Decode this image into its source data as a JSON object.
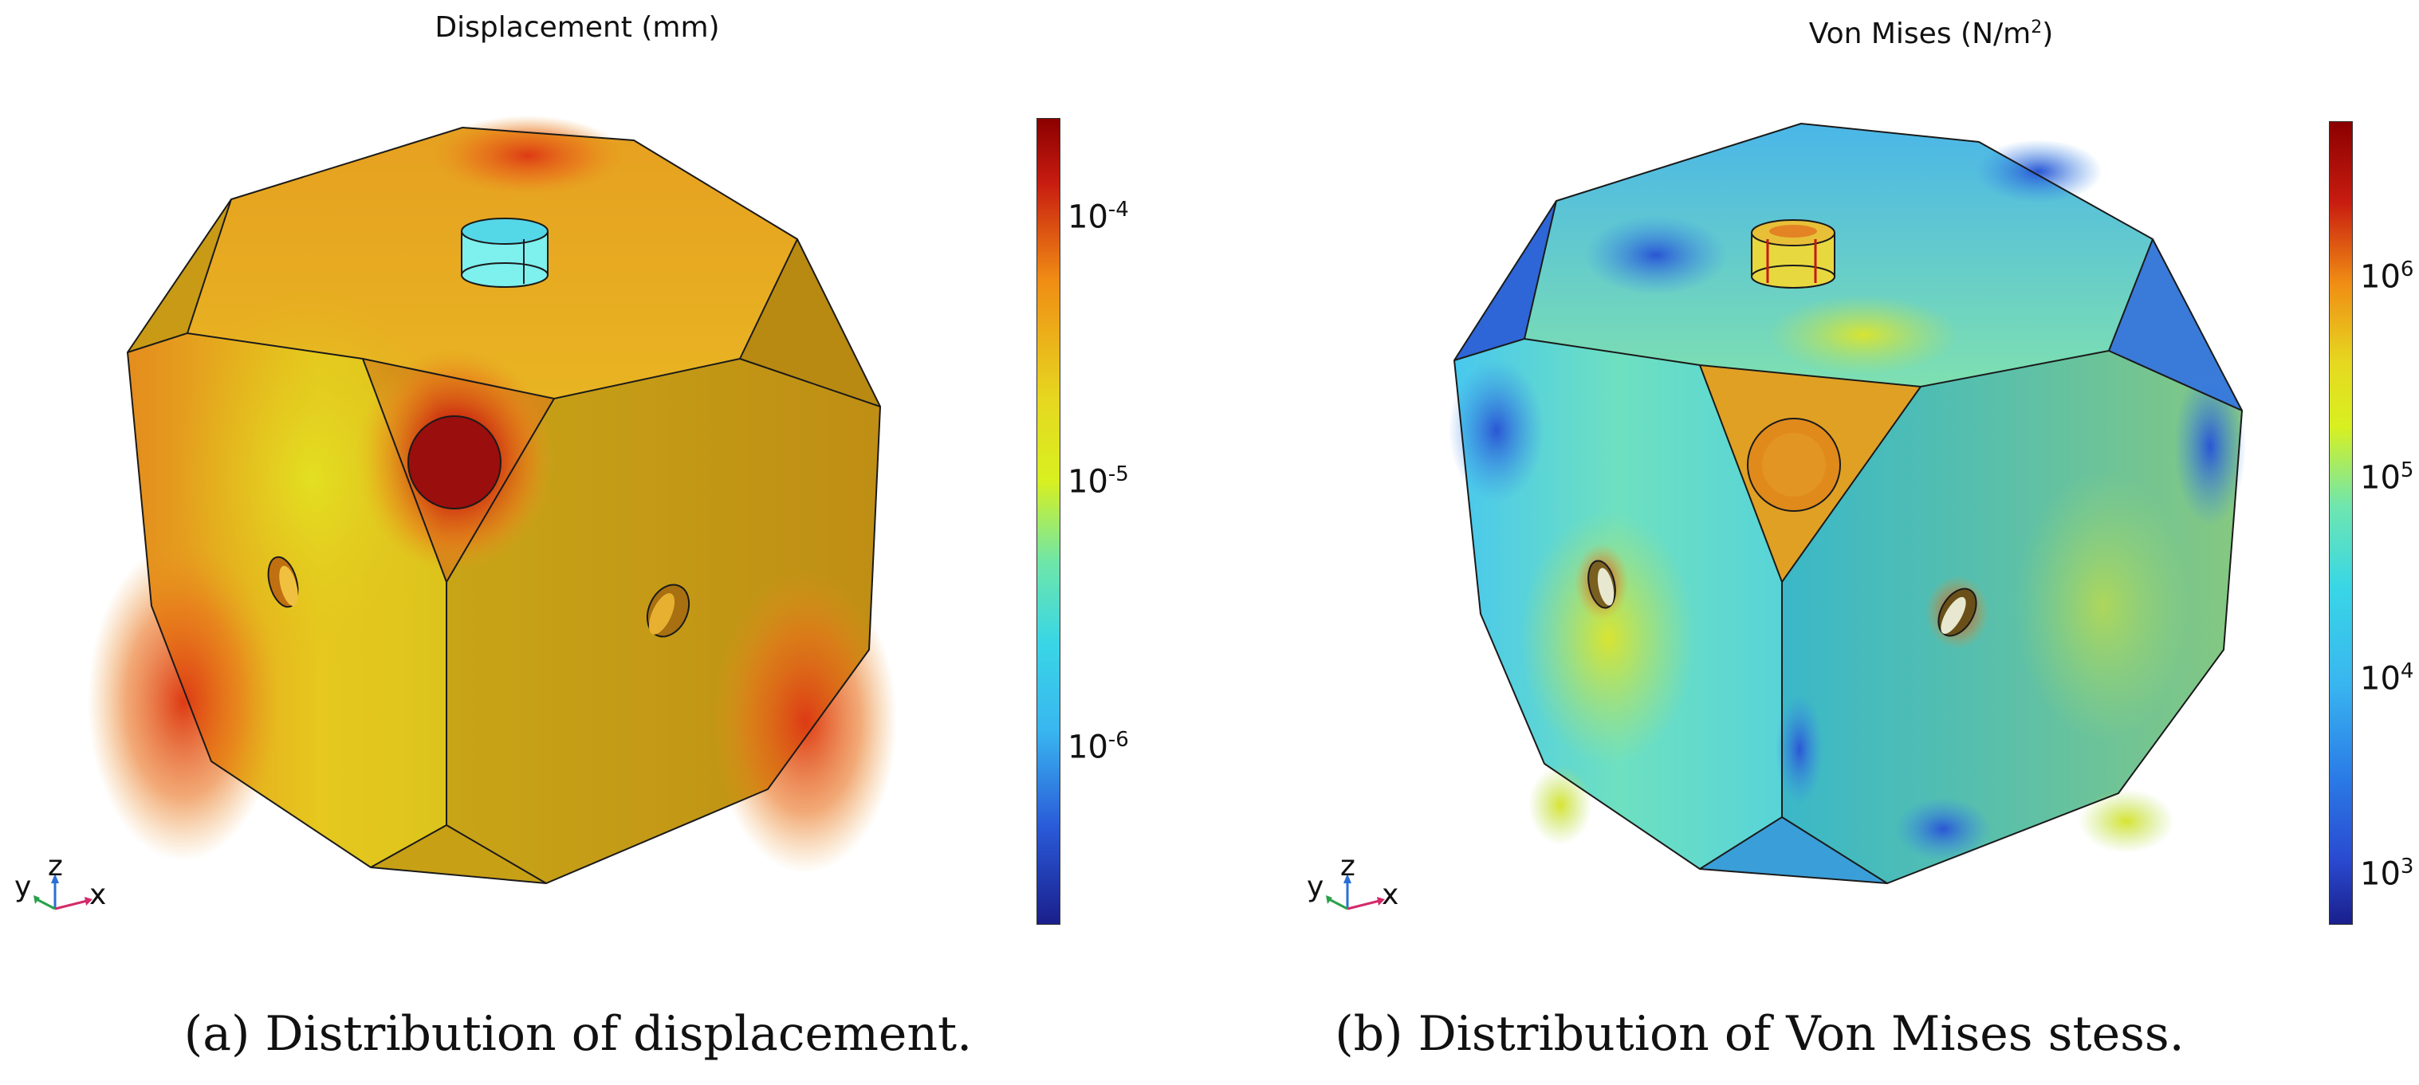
{
  "panels": [
    {
      "title": "Displacement (mm)",
      "colorbar": {
        "scale": "log",
        "colormap": "jet",
        "ticks": [
          {
            "base": "10",
            "exp": "-4"
          },
          {
            "base": "10",
            "exp": "-5"
          },
          {
            "base": "10",
            "exp": "-6"
          }
        ]
      },
      "axes": {
        "y": "y",
        "z": "z",
        "x": "x"
      },
      "caption": "(a)  Distribution of displacement."
    },
    {
      "title_main": "Von Mises (N/m",
      "title_sup": "2",
      "title_end": ")",
      "colorbar": {
        "scale": "log",
        "colormap": "jet",
        "ticks": [
          {
            "base": "10",
            "exp": "6"
          },
          {
            "base": "10",
            "exp": "5"
          },
          {
            "base": "10",
            "exp": "4"
          },
          {
            "base": "10",
            "exp": "3"
          }
        ]
      },
      "axes": {
        "y": "y",
        "z": "z",
        "x": "x"
      },
      "caption": "(b)  Distribution of Von Mises stess."
    }
  ],
  "colors": {
    "jet_low": "#1a1f8c",
    "jet_mid": "#39d6e6",
    "jet_yellow": "#e6f01e",
    "jet_orange": "#f08c14",
    "jet_high": "#8b0000",
    "edge": "#1a1a1a"
  }
}
